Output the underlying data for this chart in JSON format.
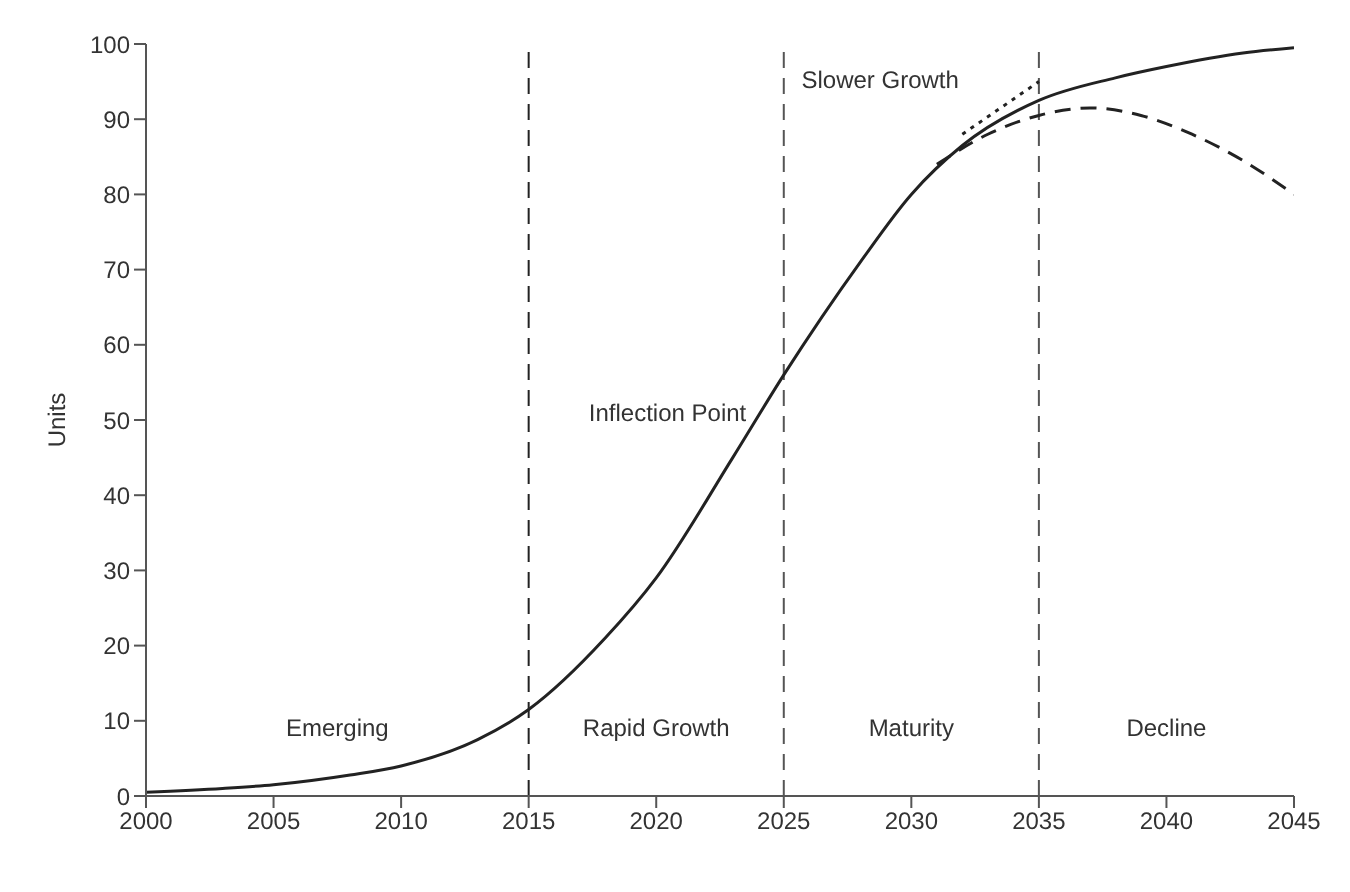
{
  "chart_data": {
    "type": "line",
    "ylabel": "Units",
    "xlim": [
      2000,
      2045
    ],
    "xticks": [
      2000,
      2005,
      2010,
      2015,
      2020,
      2025,
      2030,
      2035,
      2040,
      2045
    ],
    "ylim": [
      0,
      100
    ],
    "yticks": [
      0,
      10,
      20,
      30,
      40,
      50,
      60,
      70,
      80,
      90,
      100
    ],
    "grid": false,
    "legend": false,
    "marker": "none",
    "series": [
      {
        "color": "#222222",
        "line_style": "solid",
        "x": [
          2000,
          2003,
          2005,
          2008,
          2010,
          2013,
          2015,
          2018,
          2020,
          2023,
          2025,
          2028,
          2030,
          2032,
          2035,
          2038,
          2040,
          2043,
          2045
        ],
        "values": [
          0.5,
          1,
          1.5,
          2.8,
          4,
          7.5,
          11.5,
          21,
          29,
          45,
          56,
          71,
          80,
          86.5,
          92.5,
          95.5,
          97,
          98.8,
          99.5
        ]
      },
      {
        "color": "#222222",
        "line_style": "dashed",
        "x": [
          2031,
          2033,
          2035,
          2037,
          2039,
          2041,
          2043,
          2045
        ],
        "values": [
          84,
          88,
          90.5,
          91.5,
          90.5,
          88,
          84.5,
          80
        ]
      },
      {
        "color": "#222222",
        "line_style": "dotted",
        "x": [
          2032,
          2035
        ],
        "values": [
          88,
          95
        ]
      }
    ],
    "ref_lines": [
      {
        "axis": "x",
        "value": 2015,
        "line_style": "dashed",
        "color": "#222222"
      },
      {
        "axis": "x",
        "value": 2025,
        "line_style": "dashed",
        "color": "#555555"
      },
      {
        "axis": "x",
        "value": 2035,
        "line_style": "dashed",
        "color": "#555555"
      }
    ],
    "annotations": [
      "Emerging",
      "Rapid Growth",
      "Maturity",
      "Decline",
      {
        "text": "Inflection Point",
        "x": 2024,
        "y": 51
      },
      "Slower Growth"
    ]
  }
}
